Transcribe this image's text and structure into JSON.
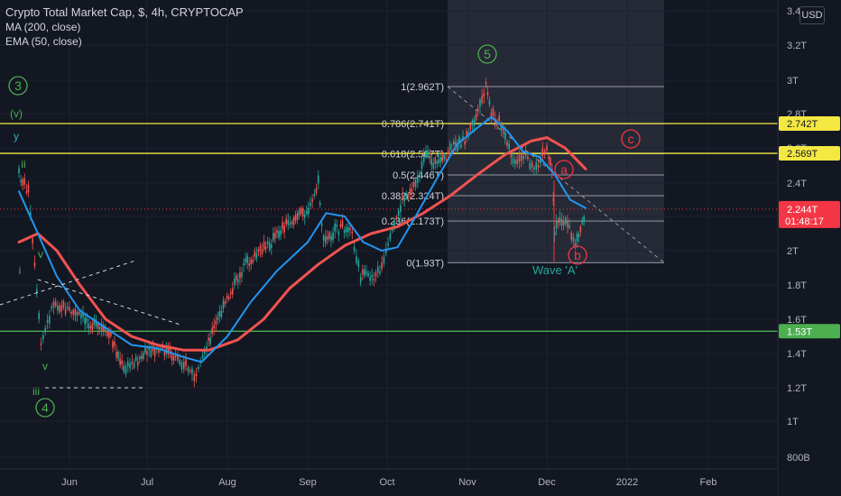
{
  "legend": {
    "title": "Crypto Total Market Cap, $, 4h, CRYPTOCAP",
    "indicator1": "MA (200, close)",
    "indicator2": "EMA (50, close)"
  },
  "currency_button": "USD",
  "colors": {
    "background": "#131722",
    "ma200": "#f05350",
    "ema50": "#2196f3",
    "candle_up": "#26a69a",
    "candle_down": "#ef5350",
    "yellow_level": "#f4e842",
    "green_level": "#4caf50",
    "price_label": "#f23645"
  },
  "chart_data": {
    "type": "line",
    "title": "Crypto Total Market Cap, $, 4h, CRYPTOCAP",
    "y_ticks": [
      "3.4T",
      "3.2T",
      "3T",
      "2.8T",
      "2.6T",
      "2.4T",
      "2.2T",
      "2T",
      "1.8T",
      "1.6T",
      "1.4T",
      "1.2T",
      "1T",
      "800B"
    ],
    "x_ticks": [
      "Jun",
      "Jul",
      "Aug",
      "Sep",
      "Oct",
      "Nov",
      "Dec",
      "2022",
      "Feb"
    ],
    "ylim": [
      "800B",
      "3.4T"
    ],
    "price_series": {
      "name": "Crypto Total Market Cap",
      "x": [
        "2021-05-16",
        "2021-05-19",
        "2021-05-23",
        "2021-05-27",
        "2021-06-01",
        "2021-06-07",
        "2021-06-12",
        "2021-06-17",
        "2021-06-22",
        "2021-06-26",
        "2021-07-01",
        "2021-07-07",
        "2021-07-12",
        "2021-07-16",
        "2021-07-20",
        "2021-07-24",
        "2021-07-29",
        "2021-08-03",
        "2021-08-08",
        "2021-08-13",
        "2021-08-18",
        "2021-08-23",
        "2021-08-28",
        "2021-09-02",
        "2021-09-05",
        "2021-09-07",
        "2021-09-12",
        "2021-09-17",
        "2021-09-21",
        "2021-09-26",
        "2021-09-29",
        "2021-10-03",
        "2021-10-07",
        "2021-10-12",
        "2021-10-16",
        "2021-10-21",
        "2021-10-26",
        "2021-10-31",
        "2021-11-05",
        "2021-11-08",
        "2021-11-10",
        "2021-11-13",
        "2021-11-16",
        "2021-11-19",
        "2021-11-23",
        "2021-11-27",
        "2021-12-01",
        "2021-12-03",
        "2021-12-04",
        "2021-12-06",
        "2021-12-09",
        "2021-12-12",
        "2021-12-14",
        "2021-12-16"
      ],
      "y": [
        2.45,
        2.35,
        1.45,
        1.7,
        1.65,
        1.6,
        1.55,
        1.5,
        1.3,
        1.35,
        1.4,
        1.42,
        1.38,
        1.33,
        1.25,
        1.45,
        1.62,
        1.78,
        1.92,
        1.98,
        2.05,
        2.15,
        2.2,
        2.25,
        2.4,
        2.05,
        2.12,
        2.15,
        1.85,
        1.85,
        1.9,
        2.1,
        2.3,
        2.4,
        2.55,
        2.5,
        2.6,
        2.65,
        2.8,
        2.96,
        2.8,
        2.75,
        2.62,
        2.5,
        2.55,
        2.48,
        2.6,
        2.45,
        2.1,
        2.2,
        2.15,
        2.05,
        2.13,
        2.244
      ]
    },
    "ma200": {
      "name": "MA (200, close)",
      "x": [
        "2021-05-16",
        "2021-05-22",
        "2021-05-28",
        "2021-06-05",
        "2021-06-15",
        "2021-06-25",
        "2021-07-05",
        "2021-07-15",
        "2021-07-25",
        "2021-08-05",
        "2021-08-15",
        "2021-08-25",
        "2021-09-05",
        "2021-09-15",
        "2021-09-25",
        "2021-10-05",
        "2021-10-15",
        "2021-10-25",
        "2021-11-05",
        "2021-11-15",
        "2021-11-25",
        "2021-12-01",
        "2021-12-08",
        "2021-12-16"
      ],
      "y": [
        2.05,
        2.1,
        2.0,
        1.8,
        1.6,
        1.5,
        1.45,
        1.42,
        1.42,
        1.48,
        1.6,
        1.78,
        1.92,
        2.03,
        2.1,
        2.14,
        2.22,
        2.32,
        2.45,
        2.56,
        2.64,
        2.66,
        2.6,
        2.48
      ]
    },
    "ema50": {
      "name": "EMA (50, close)",
      "x": [
        "2021-05-16",
        "2021-05-22",
        "2021-05-28",
        "2021-06-05",
        "2021-06-15",
        "2021-06-25",
        "2021-07-05",
        "2021-07-15",
        "2021-07-22",
        "2021-08-01",
        "2021-08-10",
        "2021-08-20",
        "2021-09-01",
        "2021-09-08",
        "2021-09-15",
        "2021-09-22",
        "2021-09-29",
        "2021-10-05",
        "2021-10-12",
        "2021-10-20",
        "2021-10-28",
        "2021-11-05",
        "2021-11-10",
        "2021-11-16",
        "2021-11-22",
        "2021-11-28",
        "2021-12-04",
        "2021-12-10",
        "2021-12-16"
      ],
      "y": [
        2.35,
        2.1,
        1.85,
        1.65,
        1.55,
        1.45,
        1.43,
        1.38,
        1.35,
        1.5,
        1.7,
        1.88,
        2.05,
        2.22,
        2.2,
        2.05,
        2.0,
        2.02,
        2.2,
        2.42,
        2.62,
        2.72,
        2.78,
        2.7,
        2.58,
        2.55,
        2.45,
        2.3,
        2.25
      ]
    },
    "fibonacci": {
      "levels": [
        {
          "ratio": "1(2.962T)",
          "value": 2.962
        },
        {
          "ratio": "0.786(2.741T)",
          "value": 2.741
        },
        {
          "ratio": "0.618(2.567T)",
          "value": 2.567
        },
        {
          "ratio": "0.5(2.446T)",
          "value": 2.446
        },
        {
          "ratio": "0.382(2.324T)",
          "value": 2.324
        },
        {
          "ratio": "0.236(2.173T)",
          "value": 2.173
        },
        {
          "ratio": "0(1.93T)",
          "value": 1.93
        }
      ]
    },
    "horizontal_levels": [
      {
        "label": "2.742T",
        "value": 2.742,
        "color": "#f4e842"
      },
      {
        "label": "2.569T",
        "value": 2.569,
        "color": "#f4e842"
      },
      {
        "label": "1.53T",
        "value": 1.53,
        "color": "#4caf50"
      }
    ],
    "current_price": {
      "label": "2.244T",
      "countdown": "01:48:17",
      "value": 2.244
    },
    "wave_labels": [
      {
        "text": "3",
        "circled": true,
        "color": "green"
      },
      {
        "text": "(v)",
        "circled": false,
        "color": "green"
      },
      {
        "text": "y",
        "circled": false,
        "color": "blue"
      },
      {
        "text": "ii",
        "circled": false,
        "color": "green"
      },
      {
        "text": "v",
        "circled": false,
        "color": "green"
      },
      {
        "text": "i",
        "circled": false,
        "color": "green"
      },
      {
        "text": "v",
        "circled": false,
        "color": "green"
      },
      {
        "text": "iii",
        "circled": false,
        "color": "green"
      },
      {
        "text": "4",
        "circled": true,
        "color": "green"
      },
      {
        "text": "5",
        "circled": true,
        "color": "green"
      },
      {
        "text": "c",
        "circled": true,
        "color": "red"
      },
      {
        "text": "a",
        "circled": true,
        "color": "red"
      },
      {
        "text": "b",
        "circled": true,
        "color": "red"
      },
      {
        "text": "Wave 'A'",
        "circled": false,
        "color": "teal"
      }
    ]
  }
}
